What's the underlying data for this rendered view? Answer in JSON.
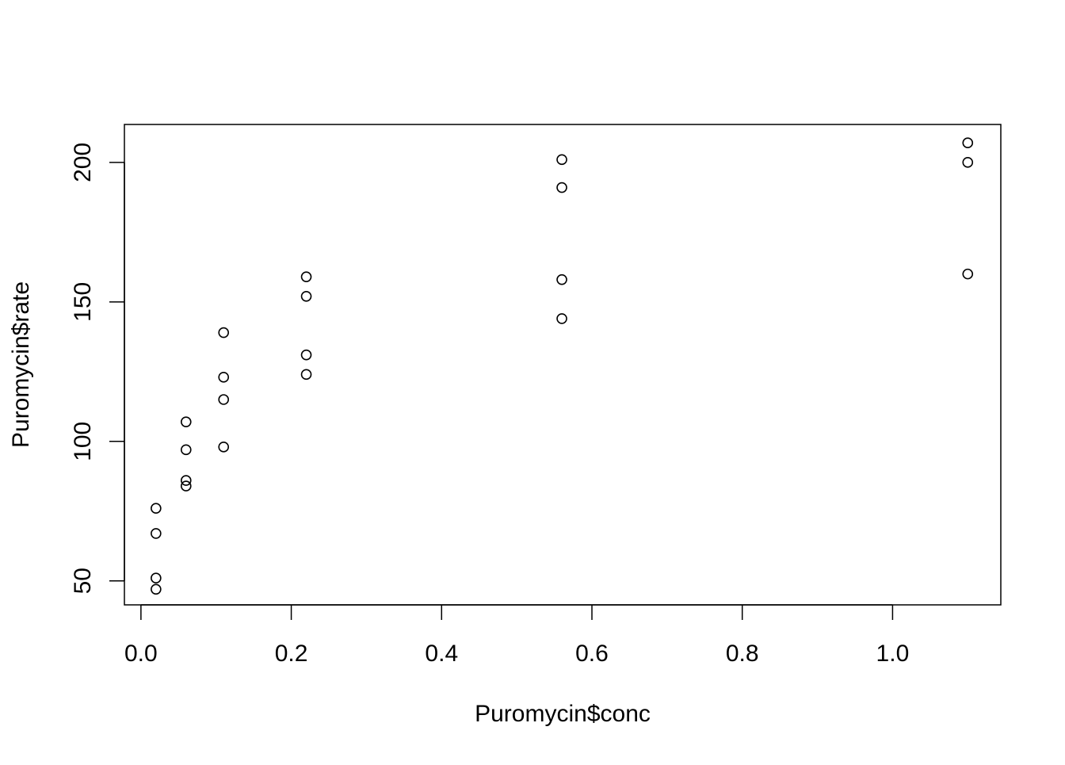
{
  "chart_data": {
    "type": "scatter",
    "title": "",
    "xlabel": "Puromycin$conc",
    "ylabel": "Puromycin$rate",
    "xlim": [
      -0.022,
      1.144
    ],
    "ylim": [
      41.4,
      213.6
    ],
    "x_ticks": [
      0.0,
      0.2,
      0.4,
      0.6,
      0.8,
      1.0
    ],
    "x_tick_labels": [
      "0.0",
      "0.2",
      "0.4",
      "0.6",
      "0.8",
      "1.0"
    ],
    "y_ticks": [
      50,
      100,
      150,
      200
    ],
    "y_tick_labels": [
      "50",
      "100",
      "150",
      "200"
    ],
    "grid": false,
    "legend": "none",
    "marker": "open-circle",
    "series": [
      {
        "x": [
          0.02,
          0.02,
          0.02,
          0.02,
          0.06,
          0.06,
          0.06,
          0.06,
          0.11,
          0.11,
          0.11,
          0.11,
          0.22,
          0.22,
          0.22,
          0.22,
          0.56,
          0.56,
          0.56,
          0.56,
          1.1,
          1.1,
          1.1
        ],
        "y": [
          76,
          47,
          67,
          51,
          97,
          107,
          84,
          86,
          123,
          139,
          98,
          115,
          159,
          152,
          131,
          124,
          191,
          201,
          144,
          158,
          207,
          200,
          160
        ]
      }
    ]
  }
}
